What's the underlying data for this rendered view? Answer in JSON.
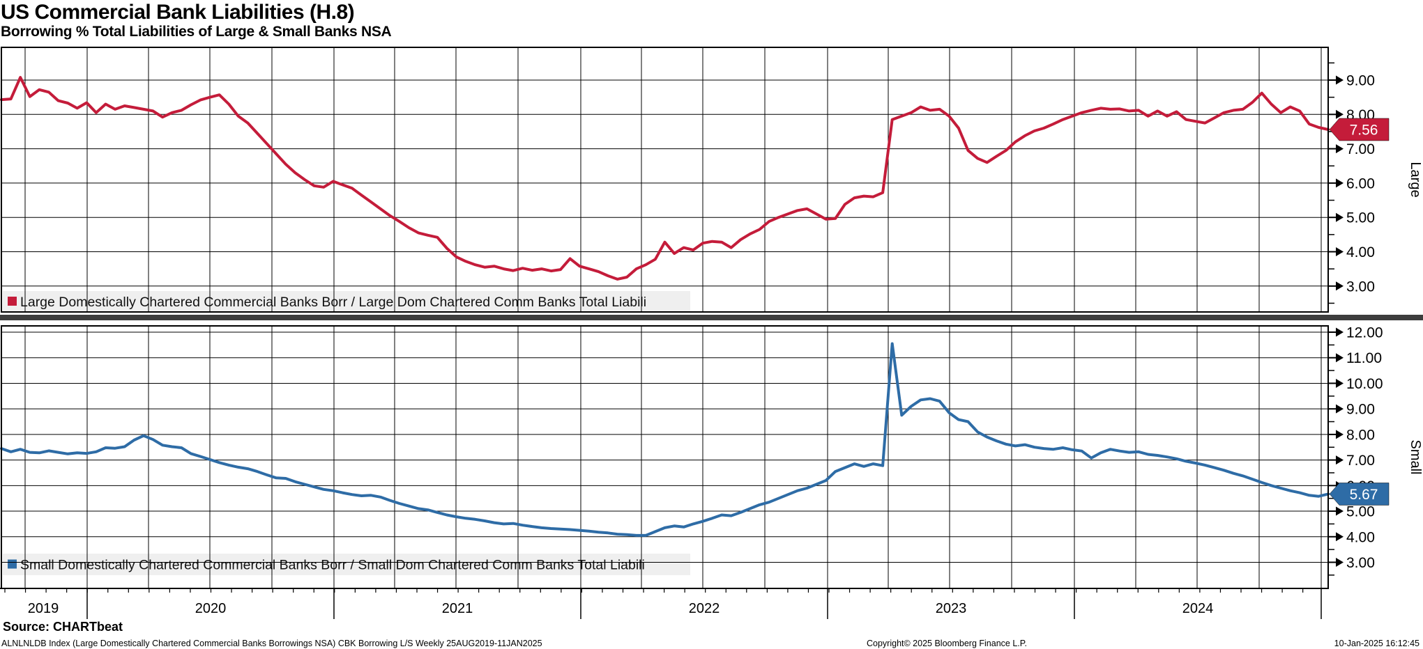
{
  "header": {
    "title": "US Commercial Bank Liabilities (H.8)",
    "subtitle": "Borrowing % Total Liabilities of Large & Small Banks NSA"
  },
  "x_axis": {
    "years": [
      "2019",
      "2020",
      "2021",
      "2022",
      "2023",
      "2024"
    ],
    "range_note": "Weekly 25AUG2019-11JAN2025"
  },
  "chart_data": [
    {
      "type": "line",
      "name": "large-banks-borrowing-pct",
      "panel_label": "Large",
      "legend": "Large Domestically Chartered Commercial Banks Borr / Large Dom Chartered Comm Banks Total Liabili",
      "color": "#c41c3a",
      "last_value": "7.56",
      "ylim": [
        2.3,
        9.95
      ],
      "yticks": [
        "9.00",
        "8.00",
        "7.00",
        "6.00",
        "5.00",
        "4.00",
        "3.00"
      ],
      "x_range": "25AUG2019 to 11JAN2025 (weekly)",
      "values": [
        8.43,
        8.45,
        9.08,
        8.52,
        8.72,
        8.65,
        8.4,
        8.33,
        8.18,
        8.34,
        8.05,
        8.3,
        8.15,
        8.25,
        8.2,
        8.15,
        8.1,
        7.92,
        8.05,
        8.12,
        8.28,
        8.42,
        8.5,
        8.57,
        8.3,
        7.95,
        7.75,
        7.45,
        7.15,
        6.85,
        6.55,
        6.3,
        6.1,
        5.92,
        5.88,
        6.05,
        5.95,
        5.85,
        5.65,
        5.45,
        5.25,
        5.05,
        4.88,
        4.7,
        4.55,
        4.48,
        4.42,
        4.1,
        3.85,
        3.72,
        3.62,
        3.55,
        3.58,
        3.5,
        3.45,
        3.52,
        3.46,
        3.5,
        3.44,
        3.48,
        3.8,
        3.58,
        3.5,
        3.42,
        3.3,
        3.2,
        3.26,
        3.5,
        3.62,
        3.78,
        4.28,
        3.95,
        4.12,
        4.05,
        4.25,
        4.3,
        4.28,
        4.12,
        4.35,
        4.52,
        4.65,
        4.88,
        5.0,
        5.1,
        5.2,
        5.25,
        5.1,
        4.95,
        4.97,
        5.38,
        5.57,
        5.62,
        5.6,
        5.72,
        7.85,
        7.95,
        8.05,
        8.22,
        8.12,
        8.15,
        7.95,
        7.6,
        6.95,
        6.72,
        6.6,
        6.78,
        6.95,
        7.2,
        7.38,
        7.52,
        7.6,
        7.72,
        7.85,
        7.95,
        8.05,
        8.12,
        8.18,
        8.15,
        8.16,
        8.1,
        8.12,
        7.95,
        8.1,
        7.95,
        8.08,
        7.85,
        7.8,
        7.75,
        7.9,
        8.05,
        8.12,
        8.15,
        8.35,
        8.62,
        8.3,
        8.05,
        8.22,
        8.1,
        7.72,
        7.62,
        7.56
      ]
    },
    {
      "type": "line",
      "name": "small-banks-borrowing-pct",
      "panel_label": "Small",
      "legend": "Small Domestically Chartered Commercial Banks Borr / Small Dom Chartered Comm Banks Total Liabili",
      "color": "#2e6ca6",
      "last_value": "5.67",
      "ylim": [
        2.0,
        12.25
      ],
      "yticks": [
        "12.00",
        "11.00",
        "10.00",
        "9.00",
        "8.00",
        "7.00",
        "6.00",
        "5.00",
        "4.00",
        "3.00"
      ],
      "x_range": "25AUG2019 to 11JAN2025 (weekly)",
      "values": [
        7.45,
        7.32,
        7.42,
        7.3,
        7.28,
        7.36,
        7.3,
        7.24,
        7.28,
        7.26,
        7.32,
        7.48,
        7.46,
        7.52,
        7.78,
        7.95,
        7.8,
        7.58,
        7.52,
        7.48,
        7.25,
        7.14,
        7.02,
        6.9,
        6.8,
        6.72,
        6.66,
        6.55,
        6.42,
        6.3,
        6.28,
        6.15,
        6.05,
        5.95,
        5.85,
        5.8,
        5.72,
        5.65,
        5.6,
        5.62,
        5.55,
        5.42,
        5.3,
        5.2,
        5.1,
        5.05,
        4.95,
        4.85,
        4.78,
        4.72,
        4.68,
        4.62,
        4.55,
        4.5,
        4.52,
        4.45,
        4.4,
        4.35,
        4.32,
        4.3,
        4.28,
        4.25,
        4.22,
        4.18,
        4.15,
        4.1,
        4.08,
        4.05,
        4.05,
        4.2,
        4.35,
        4.42,
        4.38,
        4.5,
        4.6,
        4.72,
        4.85,
        4.82,
        4.95,
        5.1,
        5.25,
        5.35,
        5.5,
        5.65,
        5.8,
        5.9,
        6.05,
        6.2,
        6.55,
        6.7,
        6.85,
        6.75,
        6.85,
        6.78,
        11.55,
        8.75,
        9.1,
        9.35,
        9.4,
        9.3,
        8.85,
        8.58,
        8.5,
        8.1,
        7.9,
        7.75,
        7.62,
        7.55,
        7.6,
        7.5,
        7.45,
        7.42,
        7.48,
        7.4,
        7.35,
        7.08,
        7.28,
        7.42,
        7.35,
        7.3,
        7.32,
        7.22,
        7.18,
        7.12,
        7.05,
        6.95,
        6.88,
        6.8,
        6.7,
        6.6,
        6.48,
        6.38,
        6.25,
        6.12,
        6.0,
        5.9,
        5.8,
        5.72,
        5.62,
        5.58,
        5.67
      ]
    }
  ],
  "footer": {
    "source": "Source: CHARTbeat",
    "description": "ALNLNLDB Index (Large Domestically Chartered Commercial Banks Borrowings NSA) CBK Borrowing L/S  Weekly 25AUG2019-11JAN2025",
    "copyright": "Copyright© 2025 Bloomberg Finance L.P.",
    "timestamp": "10-Jan-2025 16:12:45"
  }
}
